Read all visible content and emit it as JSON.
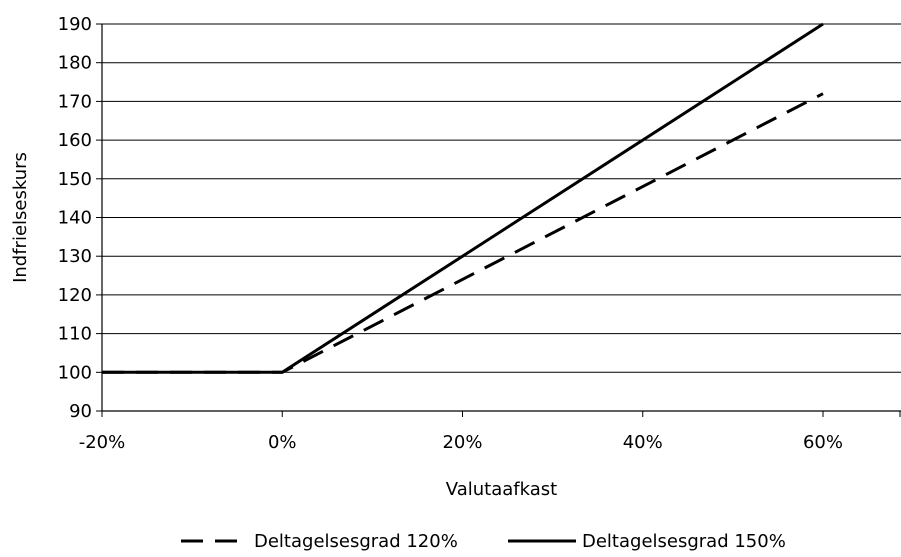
{
  "chart_data": {
    "type": "line",
    "title": "",
    "xlabel": "Valutaafkast",
    "ylabel": "Indfrielseskurs",
    "xlim": [
      -20,
      60
    ],
    "ylim": [
      90,
      190
    ],
    "x_ticks": [
      -20,
      0,
      20,
      40,
      60
    ],
    "x_tick_labels": [
      "-20%",
      "0%",
      "20%",
      "40%",
      "60%"
    ],
    "y_ticks": [
      90,
      100,
      110,
      120,
      130,
      140,
      150,
      160,
      170,
      180,
      190
    ],
    "y_tick_labels": [
      "90",
      "100",
      "110",
      "120",
      "130",
      "140",
      "150",
      "160",
      "170",
      "180",
      "190"
    ],
    "grid": "horizontal",
    "legend_position": "bottom",
    "series": [
      {
        "name": "Deltagelsesgrad 120%",
        "style": "dashed",
        "color": "#000000",
        "x": [
          -20,
          0,
          20,
          40,
          60
        ],
        "y": [
          100,
          100,
          124,
          148,
          172
        ]
      },
      {
        "name": "Deltagelsesgrad 150%",
        "style": "solid",
        "color": "#000000",
        "x": [
          -20,
          0,
          20,
          40,
          60
        ],
        "y": [
          100,
          100,
          130,
          160,
          190
        ]
      }
    ]
  }
}
